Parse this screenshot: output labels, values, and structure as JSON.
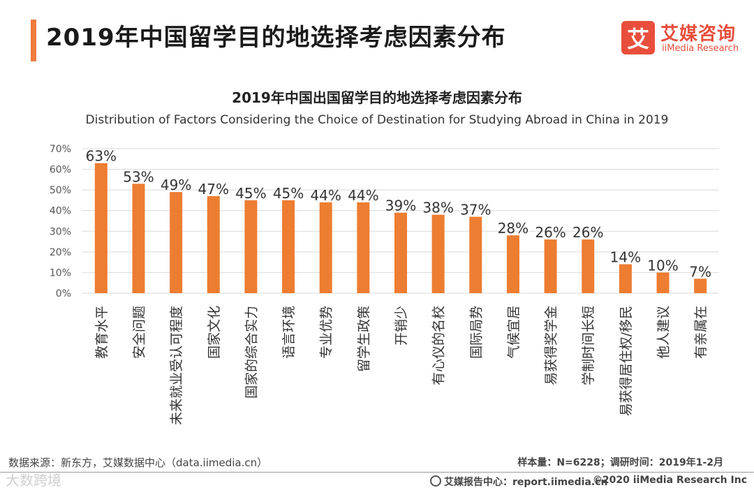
{
  "page": {
    "title": "2019年中国留学目的地选择考虑因素分布"
  },
  "logo": {
    "mark": "艾",
    "name_cn": "艾媒咨询",
    "name_en": "iiMedia Research"
  },
  "chart_data": {
    "type": "bar",
    "title": "2019年中国出国留学目的地选择考虑因素分布",
    "subtitle": "Distribution of Factors Considering the Choice of Destination for Studying Abroad in China in 2019",
    "categories": [
      "教育水平",
      "安全问题",
      "未来就业受认可程度",
      "国家文化",
      "国家的综合实力",
      "语言环境",
      "专业优势",
      "留学生政策",
      "开销少",
      "有心仪的名校",
      "国际局势",
      "气候宜居",
      "易获得奖学金",
      "学制时间长短",
      "易获得居住权/移民",
      "他人建议",
      "有亲属在"
    ],
    "values": [
      63,
      53,
      49,
      47,
      45,
      45,
      44,
      44,
      39,
      38,
      37,
      28,
      26,
      26,
      14,
      10,
      7
    ],
    "value_labels": [
      "63%",
      "53%",
      "49%",
      "47%",
      "45%",
      "45%",
      "44%",
      "44%",
      "39%",
      "38%",
      "37%",
      "28%",
      "26%",
      "26%",
      "14%",
      "10%",
      "7%"
    ],
    "yticks": [
      "0%",
      "10%",
      "20%",
      "30%",
      "40%",
      "50%",
      "60%",
      "70%"
    ],
    "ylim": [
      0,
      70
    ],
    "grid": true,
    "bar_color": "#ed7d31"
  },
  "footer": {
    "source": "数据来源：新东方，艾媒数据中心（data.iimedia.cn）",
    "meta": "样本量：N=6228；调研时间：2019年1-2月",
    "watermark": "大数跨境",
    "report": "艾媒报告中心：report.iimedia.cn",
    "copyright": "©2020  iiMedia Research  Inc"
  },
  "colors": {
    "accent": "#f07b3f",
    "brand": "#e94e3c",
    "bar": "#ed7d31"
  }
}
